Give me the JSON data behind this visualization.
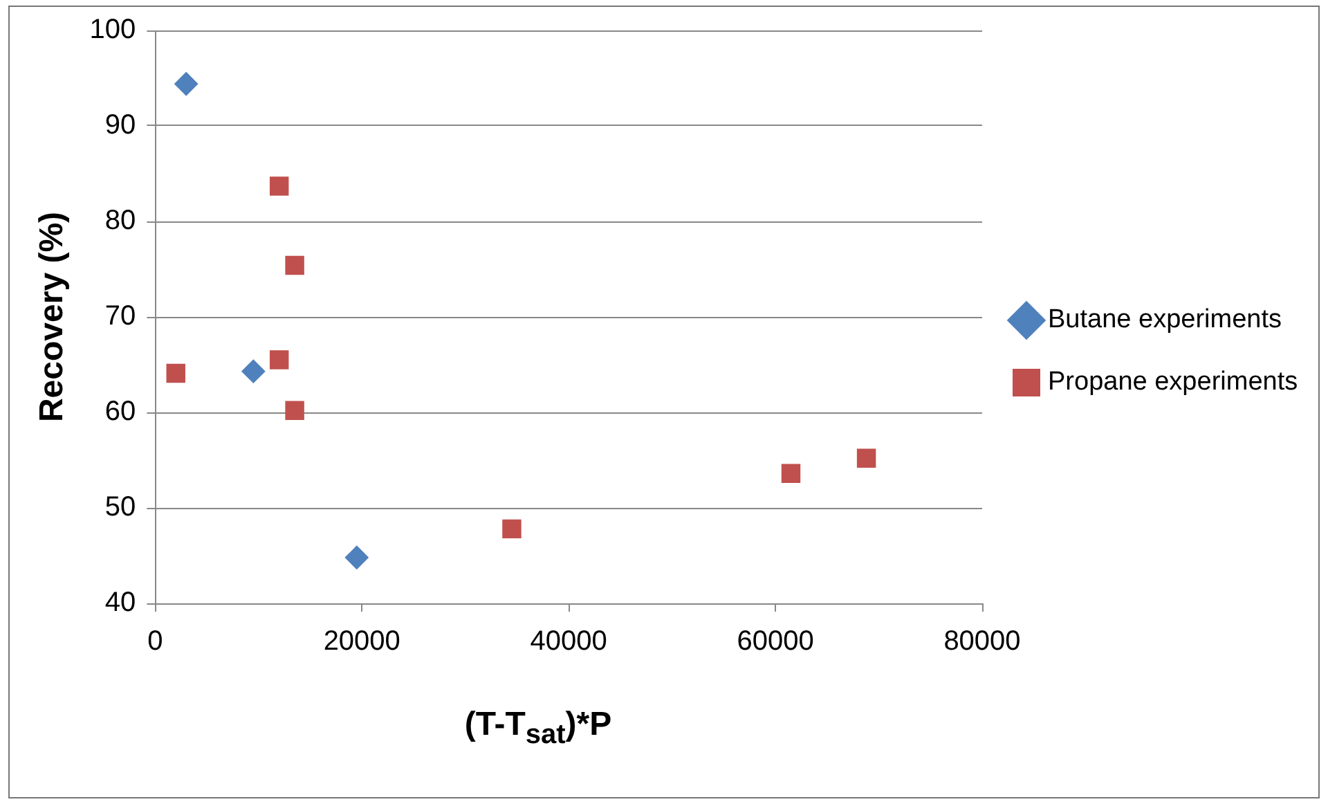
{
  "chart_data": {
    "type": "scatter",
    "xlabel": "(T-T$_{sat}$)*P",
    "ylabel": "Recovery (%)",
    "xlim": [
      0,
      80000
    ],
    "xticks": [
      0,
      20000,
      40000,
      60000,
      80000
    ],
    "ylim": [
      40,
      100
    ],
    "yticks": [
      40,
      50,
      60,
      70,
      80,
      90,
      100
    ],
    "grid": "y",
    "legend": "right",
    "series": [
      {
        "name": "Butane experiments",
        "color": "#4f81bd",
        "marker": "diamond",
        "x": [
          3000,
          9500,
          19500
        ],
        "values": [
          94.4,
          64.3,
          44.8
        ]
      },
      {
        "name": "Propane experiments",
        "color": "#c0504d",
        "marker": "square",
        "x": [
          2000,
          12000,
          13500,
          12000,
          13500,
          34500,
          61500,
          68800
        ],
        "values": [
          64.1,
          83.7,
          75.4,
          65.5,
          60.2,
          47.8,
          53.6,
          55.2
        ]
      }
    ]
  }
}
